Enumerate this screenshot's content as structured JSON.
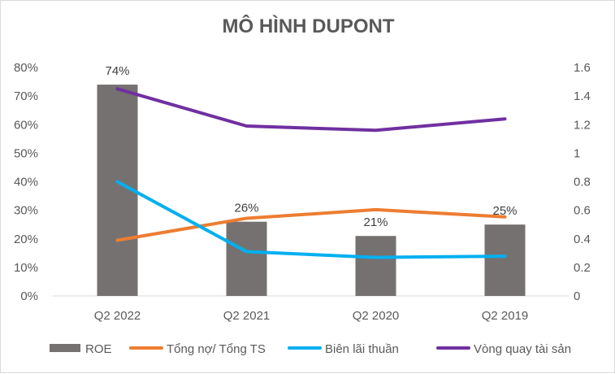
{
  "chart_data": {
    "type": "bar",
    "title": "MÔ HÌNH DUPONT",
    "categories": [
      "Q2 2022",
      "Q2 2021",
      "Q2 2020",
      "Q2 2019"
    ],
    "y_left": {
      "ticks": [
        "0%",
        "10%",
        "20%",
        "30%",
        "40%",
        "50%",
        "60%",
        "70%",
        "80%"
      ],
      "lim": [
        0,
        80
      ]
    },
    "y_right": {
      "ticks": [
        "0",
        "0.2",
        "0.4",
        "0.6",
        "0.8",
        "1",
        "1.2",
        "1.4",
        "1.6"
      ],
      "lim": [
        0,
        1.6
      ]
    },
    "grid": false,
    "legend_position": "bottom",
    "series": [
      {
        "name": "ROE",
        "type": "bar",
        "axis": "left",
        "values": [
          74,
          26,
          21,
          25
        ],
        "data_labels": [
          "74%",
          "26%",
          "21%",
          "25%"
        ],
        "color": "#767171"
      },
      {
        "name": "Tổng nợ/ Tổng TS",
        "type": "line",
        "axis": "left",
        "values": [
          19.5,
          27.2,
          30.2,
          27.7
        ],
        "color": "#ed7d31"
      },
      {
        "name": "Biên lãi thuần",
        "type": "line",
        "axis": "left",
        "values": [
          40,
          15.5,
          13.5,
          13.9
        ],
        "color": "#00b0f0"
      },
      {
        "name": "Vòng quay tài sản",
        "type": "line",
        "axis": "right",
        "values": [
          1.45,
          1.19,
          1.16,
          1.24
        ],
        "color": "#7030a0"
      }
    ]
  }
}
